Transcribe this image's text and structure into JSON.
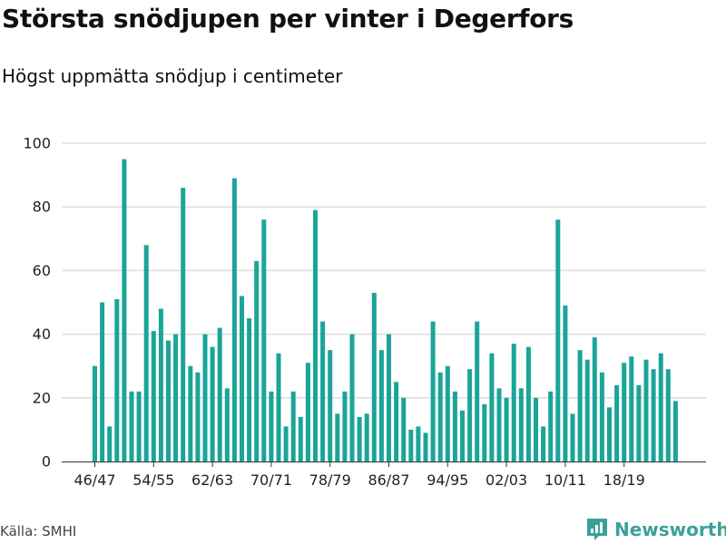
{
  "title": "Största snödjupen per vinter i Degerfors",
  "subtitle": "Högst uppmätta snödjup i centimeter",
  "source": "Källa: SMHI",
  "brand": "Newsworthy",
  "colors": {
    "bar": "#1aa598",
    "grid": "#dddddd",
    "axis": "#333333",
    "brand": "#3aa19a"
  },
  "chart_data": {
    "type": "bar",
    "title": "Största snödjupen per vinter i Degerfors",
    "subtitle": "Högst uppmätta snödjup i centimeter",
    "xlabel": "",
    "ylabel": "",
    "ylim": [
      0,
      100
    ],
    "yticks": [
      0,
      20,
      40,
      60,
      80,
      100
    ],
    "grid": true,
    "xtick_labels": [
      "46/47",
      "54/55",
      "62/63",
      "70/71",
      "78/79",
      "86/87",
      "94/95",
      "02/03",
      "10/11",
      "18/19"
    ],
    "categories": [
      "46/47",
      "47/48",
      "48/49",
      "49/50",
      "50/51",
      "51/52",
      "52/53",
      "53/54",
      "54/55",
      "55/56",
      "56/57",
      "57/58",
      "58/59",
      "59/60",
      "60/61",
      "61/62",
      "62/63",
      "63/64",
      "64/65",
      "65/66",
      "66/67",
      "67/68",
      "68/69",
      "69/70",
      "70/71",
      "71/72",
      "72/73",
      "73/74",
      "74/75",
      "75/76",
      "76/77",
      "77/78",
      "78/79",
      "79/80",
      "80/81",
      "81/82",
      "82/83",
      "83/84",
      "84/85",
      "85/86",
      "86/87",
      "87/88",
      "88/89",
      "89/90",
      "90/91",
      "91/92",
      "92/93",
      "93/94",
      "94/95",
      "95/96",
      "96/97",
      "97/98",
      "98/99",
      "99/00",
      "00/01",
      "01/02",
      "02/03",
      "03/04",
      "04/05",
      "05/06",
      "06/07",
      "07/08",
      "08/09",
      "09/10",
      "10/11",
      "11/12",
      "12/13",
      "13/14",
      "14/15",
      "15/16",
      "16/17",
      "17/18",
      "18/19",
      "19/20",
      "20/21",
      "21/22",
      "22/23",
      "23/24",
      "24/25",
      "25/26"
    ],
    "values": [
      30,
      50,
      11,
      51,
      95,
      22,
      22,
      68,
      41,
      48,
      38,
      40,
      86,
      30,
      28,
      40,
      36,
      42,
      23,
      89,
      52,
      45,
      63,
      76,
      22,
      34,
      11,
      22,
      14,
      31,
      79,
      44,
      35,
      15,
      22,
      40,
      14,
      15,
      53,
      35,
      40,
      25,
      20,
      10,
      11,
      9,
      44,
      28,
      30,
      22,
      16,
      29,
      44,
      18,
      34,
      23,
      20,
      37,
      23,
      36,
      20,
      11,
      22,
      76,
      49,
      15,
      35,
      32,
      39,
      28,
      17,
      24,
      31,
      33,
      24,
      32,
      29,
      34,
      29,
      19
    ]
  }
}
